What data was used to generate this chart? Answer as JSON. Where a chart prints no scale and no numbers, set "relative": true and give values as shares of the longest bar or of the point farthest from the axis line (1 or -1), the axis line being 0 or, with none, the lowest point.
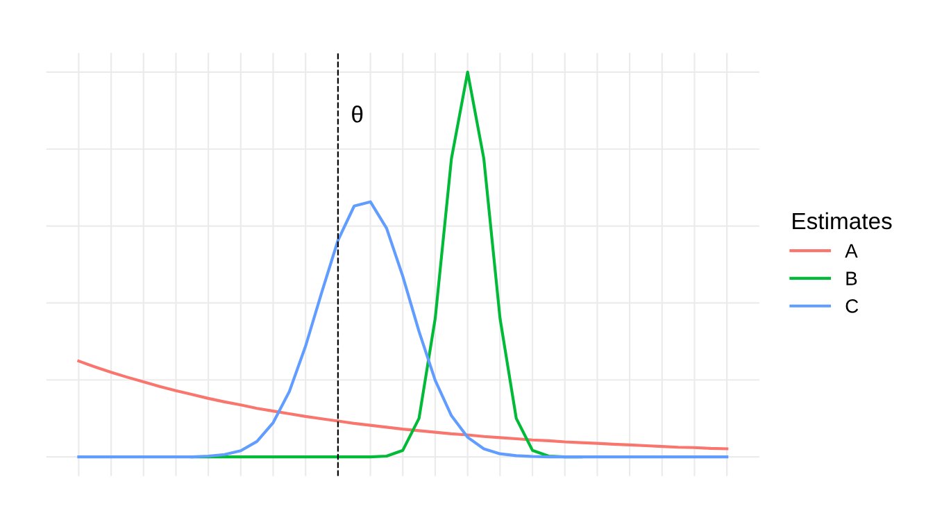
{
  "chart_data": {
    "type": "line",
    "relative": true,
    "legend_title": "Estimates",
    "legend": "right",
    "grid": true,
    "line_style": "solid",
    "marker": "none",
    "categories": [
      null,
      null,
      null,
      null,
      null,
      null,
      null,
      null,
      null,
      null,
      null,
      null,
      null,
      null,
      null,
      null,
      null,
      null,
      null,
      null,
      null,
      null,
      null,
      null,
      null,
      null,
      null,
      null,
      null,
      null,
      null,
      null,
      null,
      null,
      null,
      null,
      null,
      null,
      null,
      null,
      null
    ],
    "ref_lines": [
      {
        "axis": "x",
        "label": "θ",
        "color": "#000000",
        "line_style": "dashed"
      }
    ],
    "series": [
      {
        "name": "A",
        "color": "#f8766d",
        "values": [
          0.249,
          0.234,
          0.22,
          0.207,
          0.195,
          0.183,
          0.172,
          0.162,
          0.152,
          0.143,
          0.135,
          0.126,
          0.119,
          0.112,
          0.105,
          0.099,
          0.093,
          0.087,
          0.082,
          0.077,
          0.072,
          0.068,
          0.064,
          0.06,
          0.057,
          0.053,
          0.05,
          0.047,
          0.044,
          0.042,
          0.039,
          0.037,
          0.035,
          0.033,
          0.031,
          0.029,
          0.027,
          0.025,
          0.024,
          0.022,
          0.021
        ]
      },
      {
        "name": "B",
        "color": "#00ba38",
        "values": [
          null,
          null,
          null,
          null,
          null,
          null,
          null,
          0,
          0,
          0,
          0,
          0,
          0,
          0,
          0,
          0,
          0,
          0,
          0,
          0.002,
          0.017,
          0.1,
          0.36,
          0.775,
          1,
          0.775,
          0.36,
          0.1,
          0.017,
          0.002,
          0,
          0,
          null,
          null,
          null,
          null,
          null,
          null,
          null,
          null,
          null
        ]
      },
      {
        "name": "C",
        "color": "#619cff",
        "values": [
          0,
          0,
          0,
          0,
          0,
          0,
          0,
          0,
          0.002,
          0.006,
          0.016,
          0.04,
          0.089,
          0.17,
          0.288,
          0.428,
          0.563,
          0.652,
          0.663,
          0.594,
          0.469,
          0.326,
          0.199,
          0.107,
          0.051,
          0.021,
          0.008,
          0.003,
          0.001,
          0,
          0,
          0,
          0,
          0,
          0,
          0,
          0,
          0,
          0,
          0,
          0
        ]
      }
    ]
  }
}
